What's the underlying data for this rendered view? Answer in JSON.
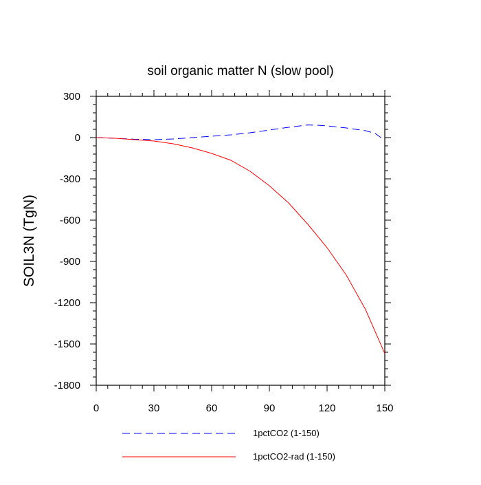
{
  "chart_data": {
    "type": "line",
    "title": "soil organic matter N (slow pool)",
    "xlabel": "",
    "ylabel": "SOIL3N  (TgN)",
    "xlim": [
      0,
      150
    ],
    "ylim": [
      -1800,
      300
    ],
    "xticks": [
      0,
      30,
      60,
      90,
      120,
      150
    ],
    "yticks": [
      300,
      0,
      -300,
      -600,
      -900,
      -1200,
      -1500,
      -1800
    ],
    "grid": false,
    "legend_placement": "bottom",
    "series": [
      {
        "name": "1pctCO2 (1-150)",
        "color": "#0000ff",
        "dash": "dashed",
        "x": [
          0,
          10,
          20,
          30,
          40,
          50,
          60,
          70,
          80,
          90,
          100,
          110,
          115,
          120,
          130,
          140,
          145,
          150
        ],
        "y": [
          0,
          -5,
          -12,
          -15,
          -10,
          0,
          10,
          20,
          35,
          55,
          75,
          92,
          90,
          85,
          70,
          50,
          30,
          -20
        ]
      },
      {
        "name": "1pctCO2-rad (1-150)",
        "color": "#ff0000",
        "dash": "solid",
        "x": [
          0,
          10,
          20,
          30,
          40,
          50,
          60,
          70,
          80,
          90,
          100,
          110,
          120,
          130,
          140,
          150
        ],
        "y": [
          0,
          -5,
          -15,
          -25,
          -45,
          -75,
          -115,
          -165,
          -245,
          -350,
          -475,
          -630,
          -800,
          -1000,
          -1250,
          -1570
        ]
      }
    ]
  }
}
